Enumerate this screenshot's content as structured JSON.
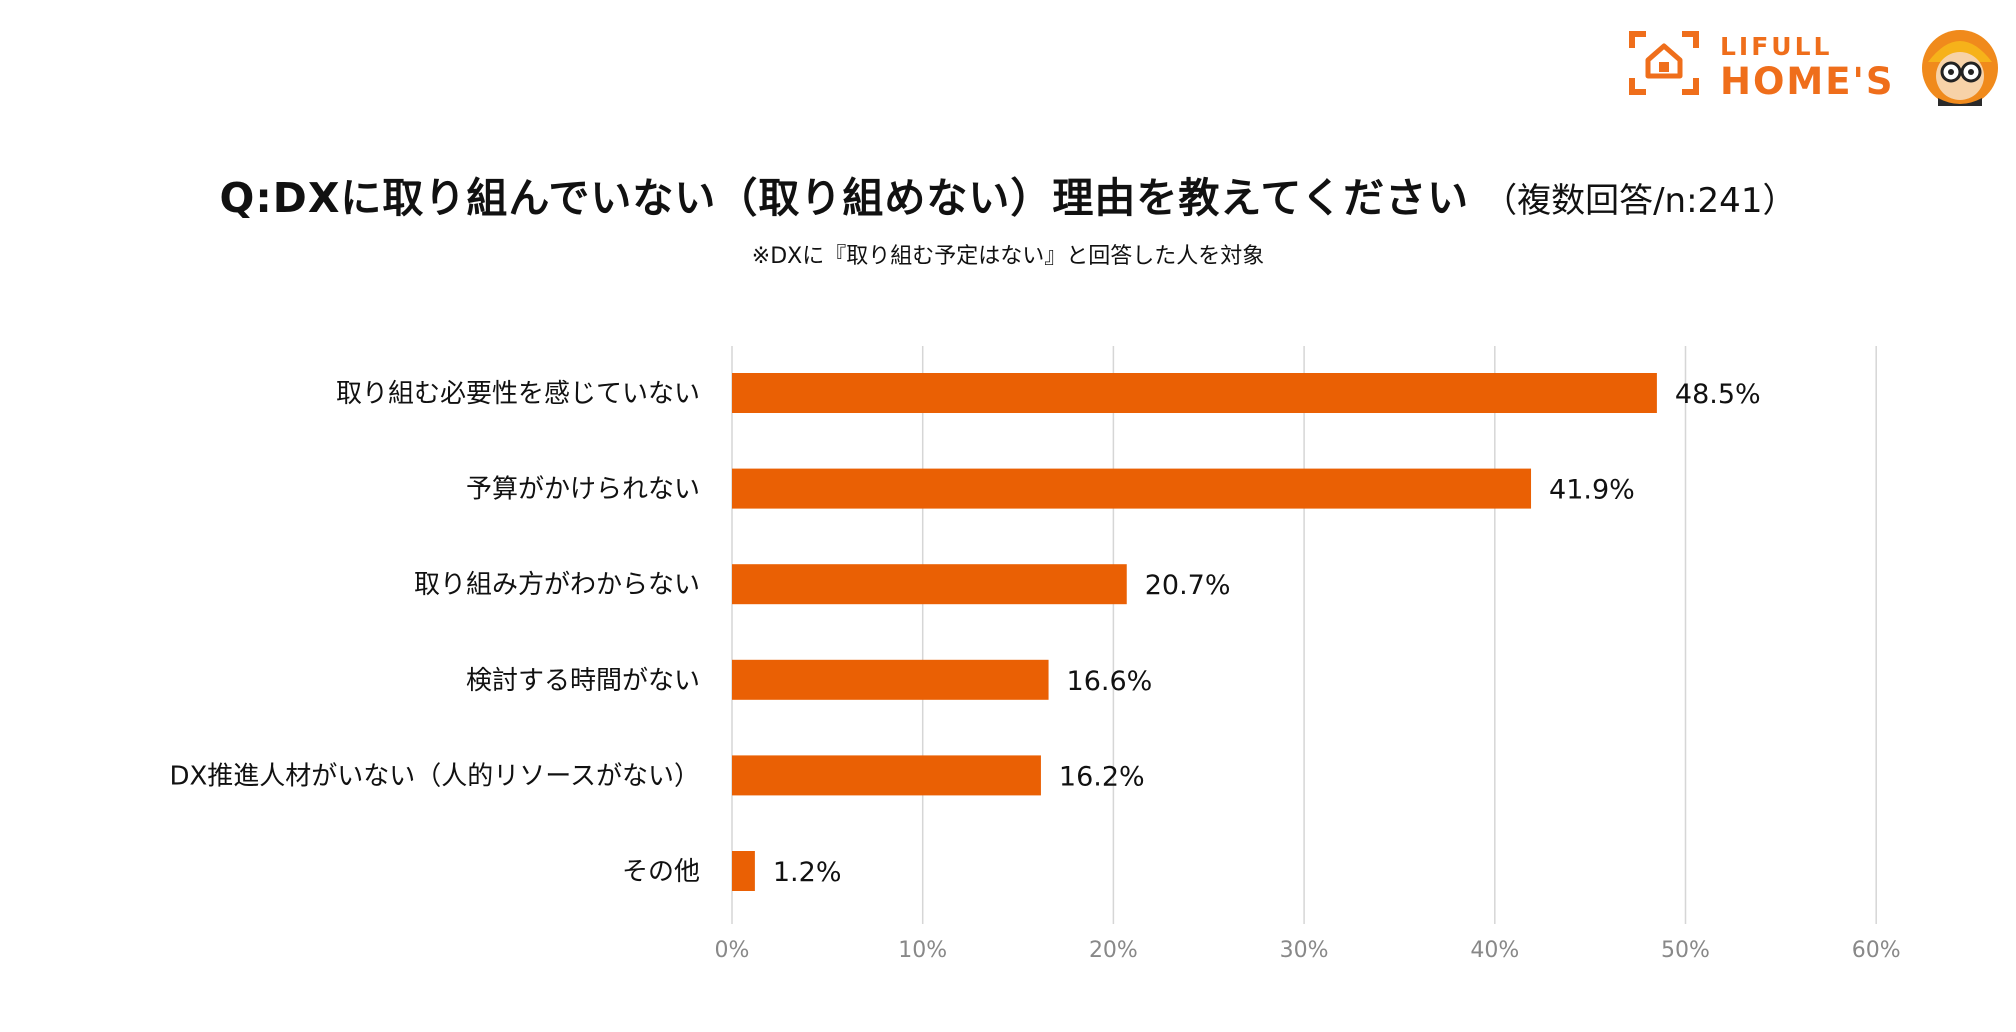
{
  "logo": {
    "line1": "LIFULL",
    "line2": "HOME'S"
  },
  "title": "Q:DXに取り組んでいない（取り組めない）理由を教えてください",
  "title_suffix": "（複数回答/n:241）",
  "note": "※DXに『取り組む予定はない』と回答した人を対象",
  "colors": {
    "bar": "#ea6004",
    "grid": "#d6d6d6",
    "axis_text": "#888888",
    "logo": "#ef6e1b"
  },
  "chart_data": {
    "type": "bar",
    "orientation": "horizontal",
    "categories": [
      "取り組む必要性を感じていない",
      "予算がかけられない",
      "取り組み方がわからない",
      "検討する時間がない",
      "DX推進人材がいない（人的リソースがない）",
      "その他"
    ],
    "values": [
      48.5,
      41.9,
      20.7,
      16.6,
      16.2,
      1.2
    ],
    "value_labels": [
      "48.5%",
      "41.9%",
      "20.7%",
      "16.6%",
      "16.2%",
      "1.2%"
    ],
    "xlim": [
      0,
      60
    ],
    "xticks": [
      0,
      10,
      20,
      30,
      40,
      50,
      60
    ],
    "xtick_labels": [
      "0%",
      "10%",
      "20%",
      "30%",
      "40%",
      "50%",
      "60%"
    ],
    "grid": "vertical",
    "legend": "none"
  }
}
